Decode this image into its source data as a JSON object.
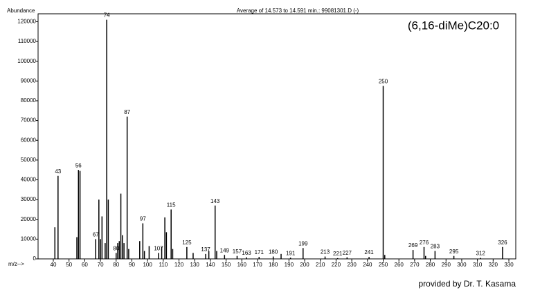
{
  "chart_data": {
    "type": "stick",
    "title": "Average of 14.573 to 14.591 min.: 99081301.D (-)",
    "annotation": "(6,16-diMe)C20:0",
    "y_label": "Abundance",
    "x_label": "m/z-->",
    "credit": "provided by Dr. T. Kasama",
    "color": "#000000",
    "xlim": [
      30.3,
      334.4
    ],
    "ylim": [
      0,
      124000
    ],
    "xticks": [
      40,
      50,
      60,
      70,
      80,
      90,
      100,
      110,
      120,
      130,
      140,
      150,
      160,
      170,
      180,
      190,
      200,
      210,
      220,
      230,
      240,
      250,
      260,
      270,
      280,
      290,
      300,
      310,
      320,
      330
    ],
    "yticks": [
      0,
      10000,
      20000,
      30000,
      40000,
      50000,
      60000,
      70000,
      80000,
      90000,
      100000,
      110000,
      120000
    ],
    "x": [
      41,
      43,
      55,
      56,
      57,
      67,
      69,
      70,
      71,
      73,
      74,
      75,
      80,
      81,
      82,
      83,
      84,
      85,
      87,
      88,
      95,
      97,
      98,
      101,
      107,
      109,
      111,
      112,
      115,
      116,
      125,
      129,
      137,
      139,
      143,
      144,
      149,
      157,
      163,
      171,
      180,
      185,
      191,
      199,
      213,
      221,
      227,
      241,
      250,
      251,
      269,
      276,
      277,
      283,
      295,
      312,
      326
    ],
    "values": [
      16000,
      42000,
      11000,
      45000,
      44500,
      10000,
      30000,
      10000,
      21500,
      8000,
      121000,
      30000,
      3000,
      8000,
      9000,
      33000,
      12000,
      8000,
      72000,
      5000,
      9000,
      18000,
      4000,
      6500,
      3000,
      6000,
      21000,
      13500,
      25000,
      5000,
      6000,
      3000,
      2500,
      4000,
      27000,
      4000,
      2000,
      1500,
      800,
      1000,
      1200,
      2500,
      600,
      5500,
      1200,
      400,
      800,
      1000,
      87500,
      2000,
      4500,
      6000,
      1500,
      4000,
      1500,
      500,
      6000
    ],
    "peak_labels": [
      null,
      "43",
      null,
      "56",
      null,
      "67",
      null,
      null,
      null,
      null,
      "74",
      null,
      "80",
      null,
      null,
      null,
      null,
      null,
      "87",
      null,
      null,
      "97",
      null,
      null,
      "107",
      null,
      null,
      null,
      "115",
      null,
      "125",
      null,
      "137",
      null,
      "143",
      null,
      "149",
      "157",
      "163",
      "171",
      "180",
      null,
      "191",
      "199",
      "213",
      "221",
      "227",
      "241",
      "250",
      null,
      "269",
      "276",
      null,
      "283",
      "295",
      "312",
      "326"
    ]
  }
}
